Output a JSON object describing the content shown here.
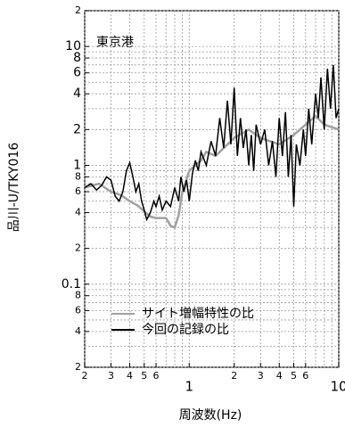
{
  "chart_data": {
    "type": "line",
    "annotation": "東京港",
    "xlabel": "周波数(Hz)",
    "ylabel": "品川-U/TKY016",
    "xscale": "log",
    "yscale": "log",
    "grid": true,
    "legend": "lower left",
    "xlim": [
      0.2,
      10
    ],
    "ylim": [
      0.02,
      20
    ],
    "xticks": [
      {
        "value": 0.2,
        "label": "2"
      },
      {
        "value": 0.3,
        "label": "3"
      },
      {
        "value": 0.4,
        "label": "4"
      },
      {
        "value": 0.5,
        "label": "5"
      },
      {
        "value": 0.6,
        "label": "6"
      },
      1,
      2,
      3,
      4,
      5,
      6,
      10
    ],
    "yticks": [
      {
        "value": 0.02,
        "label": "2"
      },
      {
        "value": 0.04,
        "label": "4"
      },
      {
        "value": 0.06,
        "label": "6"
      },
      {
        "value": 0.08,
        "label": "8"
      },
      0.1,
      {
        "value": 0.2,
        "label": "2"
      },
      {
        "value": 0.4,
        "label": "4"
      },
      {
        "value": 0.6,
        "label": "6"
      },
      {
        "value": 0.8,
        "label": "8"
      },
      1,
      2,
      4,
      6,
      8,
      10,
      {
        "value": 20,
        "label": "2"
      }
    ],
    "series": [
      {
        "name": "サイト増幅特性の比",
        "color": "#a0a0a0",
        "x": [
          0.2,
          0.25,
          0.3,
          0.35,
          0.4,
          0.45,
          0.5,
          0.55,
          0.6,
          0.7,
          0.75,
          0.8,
          0.85,
          0.9,
          1.0,
          1.1,
          1.2,
          1.3,
          1.5,
          2,
          2.5,
          3,
          4,
          5,
          6,
          7,
          8,
          10
        ],
        "values": [
          0.65,
          0.7,
          0.6,
          0.56,
          0.5,
          0.46,
          0.41,
          0.37,
          0.36,
          0.36,
          0.31,
          0.3,
          0.38,
          0.6,
          0.9,
          1.0,
          1.1,
          1.3,
          1.2,
          1.7,
          2.0,
          1.7,
          1.5,
          1.8,
          2.2,
          2.6,
          2.2,
          2.0
        ]
      },
      {
        "name": "今回の記録の比",
        "color": "#000000",
        "x": [
          0.2,
          0.22,
          0.24,
          0.26,
          0.28,
          0.3,
          0.32,
          0.34,
          0.36,
          0.38,
          0.4,
          0.42,
          0.44,
          0.46,
          0.48,
          0.5,
          0.52,
          0.55,
          0.58,
          0.6,
          0.63,
          0.66,
          0.7,
          0.75,
          0.8,
          0.85,
          0.88,
          0.92,
          0.96,
          1.0,
          1.05,
          1.1,
          1.15,
          1.2,
          1.3,
          1.4,
          1.5,
          1.6,
          1.7,
          1.8,
          1.9,
          2.0,
          2.1,
          2.2,
          2.3,
          2.4,
          2.5,
          2.6,
          2.7,
          2.8,
          3.0,
          3.2,
          3.4,
          3.6,
          3.8,
          4.0,
          4.2,
          4.4,
          4.6,
          4.8,
          5.0,
          5.2,
          5.5,
          5.8,
          6.0,
          6.3,
          6.6,
          7.0,
          7.3,
          7.6,
          8.0,
          8.4,
          8.8,
          9.2,
          9.6,
          10
        ],
        "values": [
          0.65,
          0.7,
          0.62,
          0.68,
          0.8,
          0.75,
          0.55,
          0.5,
          0.6,
          0.9,
          1.05,
          0.8,
          0.6,
          0.7,
          0.5,
          0.42,
          0.35,
          0.4,
          0.5,
          0.45,
          0.55,
          0.42,
          0.5,
          0.45,
          0.65,
          0.5,
          0.8,
          0.6,
          0.75,
          0.5,
          0.85,
          1.1,
          0.9,
          1.3,
          1.0,
          1.6,
          1.2,
          2.5,
          1.4,
          3.5,
          1.5,
          4.5,
          1.2,
          2.5,
          1.4,
          2.0,
          1.0,
          1.8,
          0.9,
          2.2,
          1.5,
          2.0,
          1.0,
          1.6,
          0.8,
          2.5,
          1.2,
          2.8,
          0.8,
          1.8,
          0.45,
          1.5,
          1.0,
          2.0,
          1.2,
          3.0,
          1.5,
          4.0,
          2.5,
          5.5,
          2.0,
          6.5,
          3.0,
          7.0,
          2.5,
          3.0
        ]
      }
    ]
  }
}
